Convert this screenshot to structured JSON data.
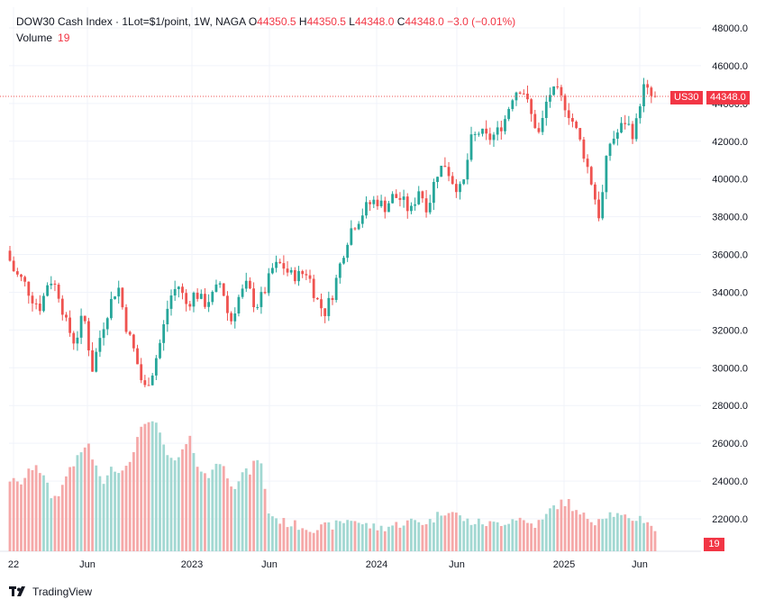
{
  "header": {
    "symbol": "DOW30 Cash Index · 1Lot=$1/point, 1W, NAGA",
    "o_label": "O",
    "o": "44350.5",
    "h_label": "H",
    "h": "44350.5",
    "l_label": "L",
    "l": "44348.0",
    "c_label": "C",
    "c": "44348.0",
    "change": "−3.0 (−0.01%)",
    "volume_label": "Volume",
    "volume_value": "19"
  },
  "price_tag": {
    "symbol": "US30",
    "value": "44348.0"
  },
  "volume_tag": "19",
  "brand": "TradingView",
  "colors": {
    "up": "#26a69a",
    "down": "#ef5350",
    "vol_up": "#a2d8d2",
    "vol_down": "#f5a8a8",
    "tag": "#f23645"
  },
  "chart_data": {
    "type": "candlestick",
    "title": "DOW30 Cash Index · 1Lot=$1/point, 1W, NAGA",
    "y_ticks": [
      "48000.0",
      "46000.0",
      "44000.0",
      "42000.0",
      "40000.0",
      "38000.0",
      "36000.0",
      "34000.0",
      "32000.0",
      "30000.0",
      "28000.0",
      "26000.0",
      "24000.0",
      "22000.0"
    ],
    "y_range": [
      21400,
      48500
    ],
    "x_ticks": [
      "22",
      "Jun",
      "2023",
      "Jun",
      "2024",
      "Jun",
      "2025",
      "Jun"
    ],
    "last_price": 44348.0,
    "anchors": [
      36200,
      35000,
      34600,
      33700,
      33200,
      34800,
      34100,
      32300,
      31300,
      32900,
      29900,
      31800,
      33300,
      34400,
      32100,
      30700,
      28800,
      29800,
      31500,
      33700,
      34400,
      33300,
      34000,
      33400,
      33800,
      34600,
      32300,
      33700,
      34400,
      33200,
      34000,
      35300,
      35500,
      34900,
      34900,
      35100,
      33700,
      32900,
      34000,
      35800,
      37300,
      37900,
      38600,
      38900,
      38500,
      39100,
      38900,
      38200,
      39500,
      38400,
      40300,
      40800,
      39800,
      39300,
      42000,
      42500,
      42100,
      42400,
      43200,
      44600,
      44900,
      43400,
      42300,
      44500,
      44600,
      43900,
      42900,
      41600,
      39900,
      37900,
      41800,
      42400,
      43100,
      42300,
      44900,
      44350
    ],
    "volume_profile": [
      24100,
      23800,
      24300,
      25000,
      24100,
      23000,
      23600,
      24800,
      25200,
      26100,
      24600,
      23900,
      24800,
      24500,
      25300,
      26400,
      27400,
      26900,
      25700,
      24800,
      25500,
      26200,
      24700,
      24100,
      25100,
      24600,
      23700,
      24400,
      24500,
      25500,
      22400,
      22000,
      21800,
      21700,
      21600,
      21500,
      21500,
      21600,
      21700,
      21900,
      22000,
      21700,
      21600,
      21500,
      21600,
      21700,
      21800,
      21900,
      21800,
      21900,
      22300,
      22500,
      22200,
      21900,
      21800,
      21800,
      21700,
      21800,
      21900,
      22100,
      21800,
      21700,
      21900,
      22600,
      22800,
      22900,
      22200,
      22100,
      21900,
      22200,
      22300,
      22100,
      21900,
      22100,
      21900,
      21600
    ],
    "volume_current": 19
  }
}
